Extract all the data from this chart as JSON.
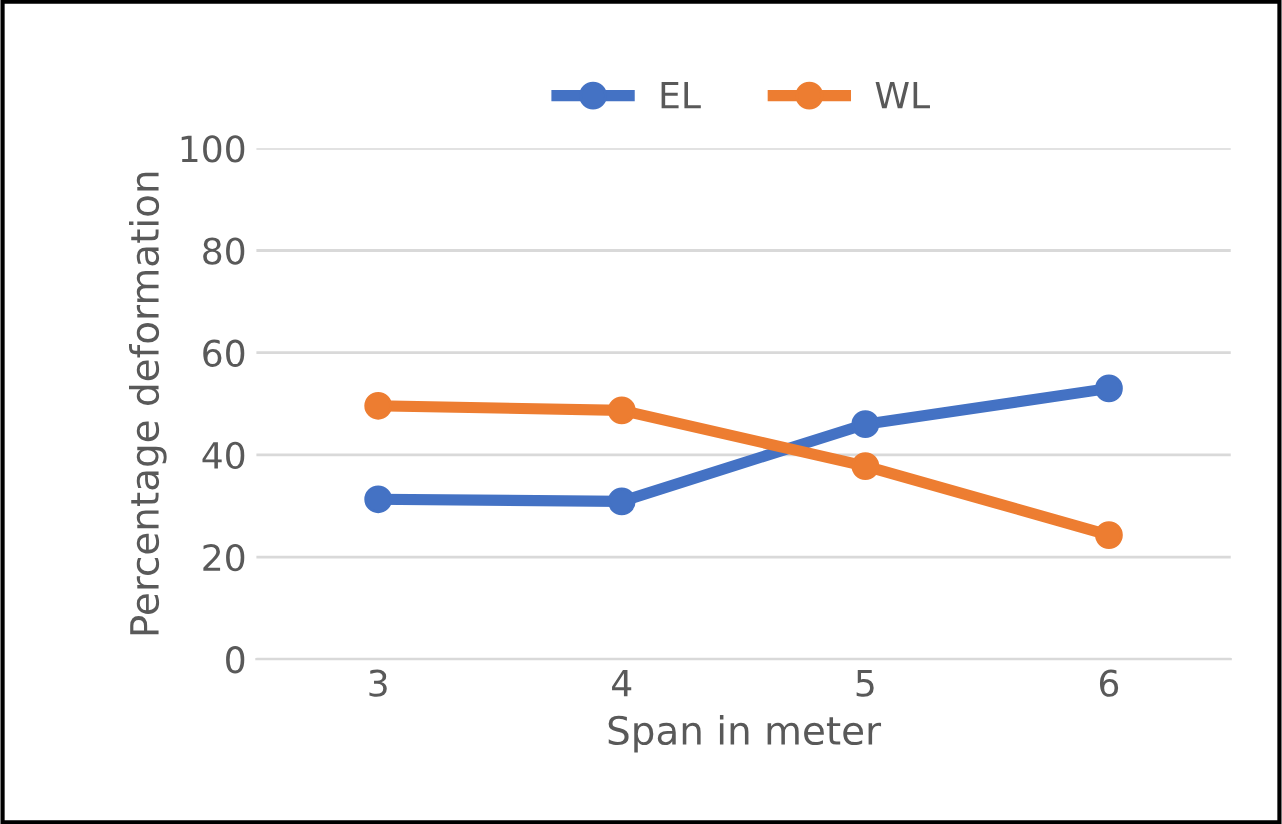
{
  "chart_data": {
    "type": "line",
    "xlabel": "Span in meter",
    "ylabel": "Percentage deformation",
    "categories": [
      "3",
      "4",
      "5",
      "6"
    ],
    "series": [
      {
        "name": "EL",
        "color": "#4472c4",
        "values": [
          31.3,
          30.9,
          46,
          53
        ]
      },
      {
        "name": "WL",
        "color": "#ed7d31",
        "values": [
          49.6,
          48.7,
          37.8,
          24.3
        ]
      }
    ],
    "ylim": [
      0,
      100
    ],
    "yticks": [
      0,
      20,
      40,
      60,
      80,
      100
    ],
    "grid": "y",
    "legend": "top",
    "marker": "circle",
    "line_style": "solid"
  }
}
